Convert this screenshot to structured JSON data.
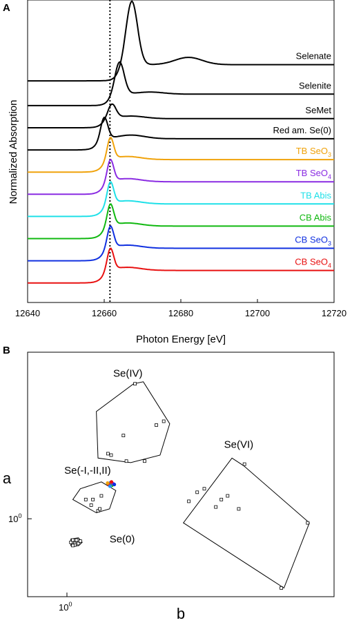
{
  "chart_data": [
    {
      "panel": "A",
      "type": "line",
      "xlabel": "Photon Energy [eV]",
      "ylabel": "Normalized Absorption",
      "xlim": [
        12640,
        12720
      ],
      "xticks": [
        12640,
        12660,
        12680,
        12700,
        12720
      ],
      "reference_line_x": 12661.5,
      "series": [
        {
          "name": "Selenate",
          "color": "#000000",
          "baseline": 8.7,
          "edge": 12664.0,
          "peak_x": 12667.2,
          "peak_h": 2.45,
          "width": 2.1,
          "tail": 0.62,
          "wiggle": 0.28,
          "wiggle_x": 12682
        },
        {
          "name": "Selenite",
          "color": "#000000",
          "baseline": 7.75,
          "edge": 12661.5,
          "peak_x": 12664.0,
          "peak_h": 1.25,
          "width": 1.7,
          "tail": 0.44,
          "wiggle": 0.08,
          "wiggle_x": 12672
        },
        {
          "name": "SeMet",
          "color": "#000000",
          "baseline": 6.9,
          "edge": 12659.8,
          "peak_x": 12662.0,
          "peak_h": 0.55,
          "width": 1.5,
          "tail": 0.35,
          "wiggle": 0.1,
          "wiggle_x": 12667
        },
        {
          "name": "Red am. Se(0)",
          "color": "#000000",
          "baseline": 6.05,
          "edge": 12658.2,
          "peak_x": 12660.0,
          "peak_h": 0.85,
          "width": 1.3,
          "tail": 0.43,
          "wiggle": 0.14,
          "wiggle_x": 12667
        },
        {
          "name": "TB SeO",
          "sub": "3",
          "color": "#f0a20a",
          "baseline": 5.2,
          "edge": 12659.8,
          "peak_x": 12661.6,
          "peak_h": 0.85,
          "width": 1.2,
          "tail": 0.48,
          "wiggle": 0.12,
          "wiggle_x": 12666
        },
        {
          "name": "TB SeO",
          "sub": "4",
          "color": "#8a2be2",
          "baseline": 4.35,
          "edge": 12659.8,
          "peak_x": 12661.6,
          "peak_h": 0.85,
          "width": 1.2,
          "tail": 0.48,
          "wiggle": 0.12,
          "wiggle_x": 12666
        },
        {
          "name": "TB Abis",
          "color": "#1ee0e8",
          "baseline": 3.5,
          "edge": 12659.8,
          "peak_x": 12661.6,
          "peak_h": 0.85,
          "width": 1.2,
          "tail": 0.48,
          "wiggle": 0.12,
          "wiggle_x": 12666
        },
        {
          "name": "CB Abis",
          "color": "#10b810",
          "baseline": 2.65,
          "edge": 12659.8,
          "peak_x": 12661.6,
          "peak_h": 0.85,
          "width": 1.2,
          "tail": 0.48,
          "wiggle": 0.12,
          "wiggle_x": 12666
        },
        {
          "name": "CB SeO",
          "sub": "3",
          "color": "#1030e0",
          "baseline": 1.8,
          "edge": 12659.8,
          "peak_x": 12661.6,
          "peak_h": 0.85,
          "width": 1.2,
          "tail": 0.48,
          "wiggle": 0.12,
          "wiggle_x": 12666
        },
        {
          "name": "CB SeO",
          "sub": "4",
          "color": "#e81010",
          "baseline": 0.95,
          "edge": 12659.8,
          "peak_x": 12661.6,
          "peak_h": 0.85,
          "width": 1.2,
          "tail": 0.48,
          "wiggle": 0.12,
          "wiggle_x": 12666
        }
      ]
    },
    {
      "panel": "B",
      "type": "scatter",
      "xlabel": "b",
      "ylabel": "a",
      "xscale": "log",
      "yscale": "log",
      "xtick_label": "10",
      "xtick_exp": "0",
      "ytick_label": "10",
      "ytick_exp": "0",
      "groups": [
        {
          "name": "Se(IV)",
          "hull": [
            [
              1.4,
              1.95
            ],
            [
              1.47,
              1.97
            ],
            [
              1.68,
              1.6
            ],
            [
              1.6,
              1.37
            ],
            [
              1.38,
              1.32
            ],
            [
              1.17,
              1.35
            ],
            [
              1.16,
              1.7
            ]
          ],
          "points": [
            [
              1.23,
              1.38
            ],
            [
              1.33,
              1.51
            ],
            [
              1.57,
              1.59
            ],
            [
              1.48,
              1.33
            ],
            [
              1.41,
              1.95
            ],
            [
              1.35,
              1.33
            ],
            [
              1.63,
              1.62
            ],
            [
              1.25,
              1.37
            ]
          ]
        },
        {
          "name": "Se(VI)",
          "hull": [
            [
              2.3,
              1.35
            ],
            [
              2.44,
              1.3
            ],
            [
              3.4,
              0.98
            ],
            [
              2.99,
              0.71
            ],
            [
              1.8,
              0.98
            ]
          ],
          "points": [
            [
              1.93,
              1.14
            ],
            [
              2.18,
              1.1
            ],
            [
              2.12,
              1.06
            ],
            [
              2.38,
              1.05
            ],
            [
              2.0,
              1.16
            ],
            [
              1.85,
              1.09
            ],
            [
              2.45,
              1.31
            ],
            [
              3.37,
              0.98
            ],
            [
              2.95,
              0.71
            ],
            [
              2.25,
              1.12
            ]
          ]
        },
        {
          "name": "Se(-I,-II,II)",
          "hull": [
            [
              1.07,
              1.16
            ],
            [
              1.19,
              1.2
            ],
            [
              1.28,
              1.15
            ],
            [
              1.24,
              1.05
            ],
            [
              1.16,
              1.03
            ],
            [
              1.03,
              1.1
            ]
          ],
          "points": [
            [
              1.1,
              1.1
            ],
            [
              1.13,
              1.07
            ],
            [
              1.17,
              1.04
            ],
            [
              1.19,
              1.12
            ],
            [
              1.14,
              1.1
            ],
            [
              1.18,
              1.05
            ]
          ]
        },
        {
          "name": "Se(0)",
          "hull": [
            [
              1.02,
              0.905
            ],
            [
              1.06,
              0.91
            ],
            [
              1.08,
              0.89
            ],
            [
              1.06,
              0.875
            ],
            [
              1.02,
              0.875
            ]
          ],
          "points": [
            [
              1.02,
              0.89
            ],
            [
              1.03,
              0.9
            ],
            [
              1.04,
              0.885
            ],
            [
              1.05,
              0.9
            ],
            [
              1.06,
              0.885
            ],
            [
              1.07,
              0.895
            ],
            [
              1.04,
              0.878
            ],
            [
              1.03,
              0.876
            ]
          ]
        }
      ],
      "colored_points": [
        {
          "color": "#1e90ff",
          "x": 1.245,
          "y": 1.195
        },
        {
          "color": "#e81010",
          "x": 1.235,
          "y": 1.185
        },
        {
          "color": "#10b810",
          "x": 1.255,
          "y": 1.18
        },
        {
          "color": "#f0a20a",
          "x": 1.228,
          "y": 1.193
        },
        {
          "color": "#8a2be2",
          "x": 1.262,
          "y": 1.19
        },
        {
          "color": "#1e90ff",
          "x": 1.243,
          "y": 1.175
        },
        {
          "color": "#1030e0",
          "x": 1.27,
          "y": 1.185
        },
        {
          "color": "#e81010",
          "x": 1.252,
          "y": 1.2
        }
      ]
    }
  ],
  "panels": {
    "a_label": "A",
    "b_label": "B"
  }
}
